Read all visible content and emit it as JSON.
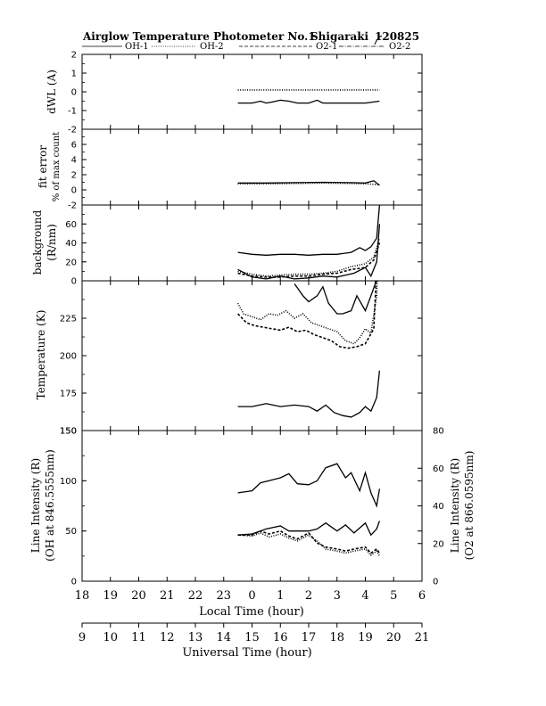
{
  "header": {
    "title": "Airglow Temperature Photometer No.1",
    "station": "Shigaraki",
    "date": "120825",
    "legend": [
      "OH-1",
      "OH-2",
      "O2-1",
      "O2-2"
    ]
  },
  "chart_data": [
    {
      "type": "line",
      "panel": "dwl",
      "ylabel": "dWL (A)",
      "ylim": [
        -2,
        2
      ],
      "yticks": [
        -2,
        -1,
        0,
        1,
        2
      ],
      "series": [
        {
          "style": "dotted",
          "x": [
            23.5,
            24.0,
            25.0,
            26.0,
            27.0,
            28.0,
            28.5
          ],
          "y": [
            0.1,
            0.1,
            0.1,
            0.1,
            0.1,
            0.1,
            0.1
          ]
        },
        {
          "style": "solid",
          "x": [
            23.5,
            24.0,
            24.3,
            24.5,
            24.7,
            25.0,
            25.3,
            25.6,
            26.0,
            26.3,
            26.5,
            27.0,
            27.5,
            28.0,
            28.5
          ],
          "y": [
            -0.6,
            -0.6,
            -0.5,
            -0.6,
            -0.55,
            -0.45,
            -0.5,
            -0.6,
            -0.6,
            -0.45,
            -0.6,
            -0.6,
            -0.6,
            -0.6,
            -0.5
          ]
        }
      ]
    },
    {
      "type": "line",
      "panel": "fit_error",
      "ylabel": "fit error",
      "ylabel2": "% of max count",
      "ylim": [
        -2,
        8
      ],
      "yticks": [
        -2,
        0,
        2,
        4,
        6
      ],
      "series": [
        {
          "style": "solid",
          "x": [
            23.5,
            24.5,
            25.5,
            26.5,
            27.5,
            28.0,
            28.3,
            28.5
          ],
          "y": [
            0.9,
            0.9,
            0.95,
            1.0,
            0.95,
            0.9,
            1.2,
            0.6
          ]
        },
        {
          "style": "dotted",
          "x": [
            23.5,
            24.5,
            25.5,
            26.5,
            27.5,
            28.0,
            28.5
          ],
          "y": [
            0.8,
            0.8,
            0.85,
            0.9,
            0.85,
            0.8,
            0.7
          ]
        }
      ]
    },
    {
      "type": "line",
      "panel": "background",
      "ylabel": "background",
      "ylabel2": "(R/nm)",
      "ylim": [
        0,
        80
      ],
      "yticks": [
        0,
        20,
        40,
        60
      ],
      "series": [
        {
          "style": "solid",
          "x": [
            23.5,
            24.0,
            24.5,
            25.0,
            25.5,
            26.0,
            26.5,
            27.0,
            27.5,
            27.8,
            28.0,
            28.2,
            28.4,
            28.5
          ],
          "y": [
            30,
            28,
            27,
            28,
            28,
            27,
            28,
            28,
            30,
            35,
            32,
            36,
            45,
            80
          ]
        },
        {
          "style": "dotted",
          "x": [
            23.5,
            24.0,
            24.5,
            25.0,
            25.5,
            26.0,
            26.5,
            27.0,
            27.5,
            28.0,
            28.3,
            28.5
          ],
          "y": [
            10,
            7,
            5,
            6,
            7,
            7,
            8,
            10,
            15,
            18,
            25,
            45
          ]
        },
        {
          "style": "dashed",
          "x": [
            23.5,
            24.0,
            24.5,
            25.0,
            25.5,
            26.0,
            26.5,
            27.0,
            27.5,
            28.0,
            28.3,
            28.5
          ],
          "y": [
            8,
            5,
            4,
            4,
            5,
            5,
            7,
            8,
            12,
            14,
            22,
            40
          ]
        },
        {
          "style": "solid",
          "x": [
            23.5,
            24.0,
            24.5,
            25.0,
            25.5,
            26.0,
            26.5,
            27.0,
            27.3,
            27.6,
            28.0,
            28.2,
            28.4,
            28.5
          ],
          "y": [
            12,
            4,
            2,
            5,
            2,
            3,
            5,
            4,
            6,
            8,
            14,
            5,
            20,
            60
          ]
        }
      ]
    },
    {
      "type": "line",
      "panel": "temperature",
      "ylabel": "Temperature (K)",
      "ylim": [
        150,
        250
      ],
      "yticks": [
        150,
        175,
        200,
        225
      ],
      "series": [
        {
          "style": "solid",
          "x": [
            23.5,
            24.0,
            24.5,
            25.0,
            25.5,
            26.0,
            26.3,
            26.6,
            26.9,
            27.2,
            27.5,
            27.8,
            28.0,
            28.2,
            28.4,
            28.5
          ],
          "y": [
            166,
            166,
            168,
            166,
            167,
            166,
            163,
            167,
            162,
            160,
            159,
            162,
            166,
            163,
            172,
            190
          ]
        },
        {
          "style": "dotted",
          "x": [
            23.5,
            23.7,
            24.0,
            24.3,
            24.6,
            24.9,
            25.2,
            25.5,
            25.8,
            26.1,
            26.4,
            26.7,
            27.0,
            27.3,
            27.6,
            27.8,
            28.0,
            28.2,
            28.4,
            28.5
          ],
          "y": [
            235,
            228,
            226,
            224,
            228,
            227,
            230,
            225,
            228,
            222,
            220,
            218,
            216,
            210,
            208,
            212,
            218,
            215,
            240,
            300
          ]
        },
        {
          "style": "dashed",
          "x": [
            23.5,
            23.8,
            24.1,
            24.4,
            24.7,
            25.0,
            25.3,
            25.6,
            25.9,
            26.2,
            26.5,
            26.8,
            27.1,
            27.4,
            27.7,
            28.0,
            28.3,
            28.5
          ],
          "y": [
            228,
            222,
            220,
            219,
            218,
            217,
            219,
            216,
            217,
            214,
            212,
            210,
            206,
            205,
            206,
            208,
            218,
            300
          ]
        },
        {
          "style": "solid",
          "x": [
            25.5,
            25.8,
            26.0,
            26.3,
            26.5,
            26.7,
            27.0,
            27.2,
            27.5,
            27.7,
            28.0,
            28.2,
            28.35,
            28.5
          ],
          "y": [
            248,
            240,
            236,
            240,
            246,
            235,
            228,
            228,
            230,
            240,
            230,
            240,
            248,
            300
          ]
        }
      ]
    },
    {
      "type": "line",
      "panel": "line_intensity",
      "ylabel": "Line Intensity (R)",
      "ylabel2": "(OH at 846.5555nm)",
      "ylim": [
        0,
        150
      ],
      "yticks": [
        0,
        50,
        100,
        150
      ],
      "y2label": "Line Intensity (R)",
      "y2label2": "(O2 at 866.0595nm)",
      "y2lim": [
        0,
        80
      ],
      "y2ticks": [
        0,
        20,
        40,
        60,
        80
      ],
      "series": [
        {
          "style": "solid",
          "x": [
            23.5,
            24.0,
            24.3,
            24.6,
            25.0,
            25.3,
            25.6,
            26.0,
            26.3,
            26.6,
            27.0,
            27.3,
            27.5,
            27.8,
            28.0,
            28.2,
            28.4,
            28.5
          ],
          "y": [
            88,
            90,
            98,
            100,
            103,
            107,
            97,
            96,
            100,
            113,
            117,
            103,
            108,
            90,
            108,
            88,
            75,
            92
          ]
        },
        {
          "style": "solid",
          "x": [
            23.5,
            24.0,
            24.5,
            25.0,
            25.3,
            25.6,
            26.0,
            26.3,
            26.6,
            27.0,
            27.3,
            27.6,
            28.0,
            28.2,
            28.4,
            28.5
          ],
          "y": [
            46,
            47,
            52,
            55,
            50,
            50,
            50,
            52,
            58,
            50,
            56,
            48,
            58,
            46,
            52,
            60
          ]
        },
        {
          "style": "dotted",
          "x": [
            23.5,
            24.0,
            24.3,
            24.6,
            25.0,
            25.3,
            25.6,
            26.0,
            26.3,
            26.6,
            27.0,
            27.3,
            27.6,
            28.0,
            28.2,
            28.4,
            28.5
          ],
          "y": [
            46,
            45,
            48,
            44,
            47,
            43,
            40,
            46,
            40,
            32,
            30,
            28,
            30,
            32,
            26,
            30,
            25
          ]
        },
        {
          "style": "dashed",
          "x": [
            23.5,
            24.0,
            24.3,
            24.6,
            25.0,
            25.3,
            25.6,
            26.0,
            26.3,
            26.6,
            27.0,
            27.3,
            27.6,
            28.0,
            28.2,
            28.4,
            28.5
          ],
          "y": [
            46,
            46,
            50,
            47,
            50,
            45,
            42,
            48,
            38,
            34,
            32,
            30,
            32,
            34,
            28,
            32,
            28
          ]
        }
      ]
    }
  ],
  "xaxis": {
    "local": {
      "label": "Local Time (hour)",
      "ticks": [
        "18",
        "19",
        "20",
        "21",
        "22",
        "23",
        "0",
        "1",
        "2",
        "3",
        "4",
        "5",
        "6"
      ]
    },
    "universal": {
      "label": "Universal Time (hour)",
      "ticks": [
        "9",
        "10",
        "11",
        "12",
        "13",
        "14",
        "15",
        "16",
        "17",
        "18",
        "19",
        "20",
        "21"
      ]
    },
    "range": [
      18,
      30
    ]
  }
}
